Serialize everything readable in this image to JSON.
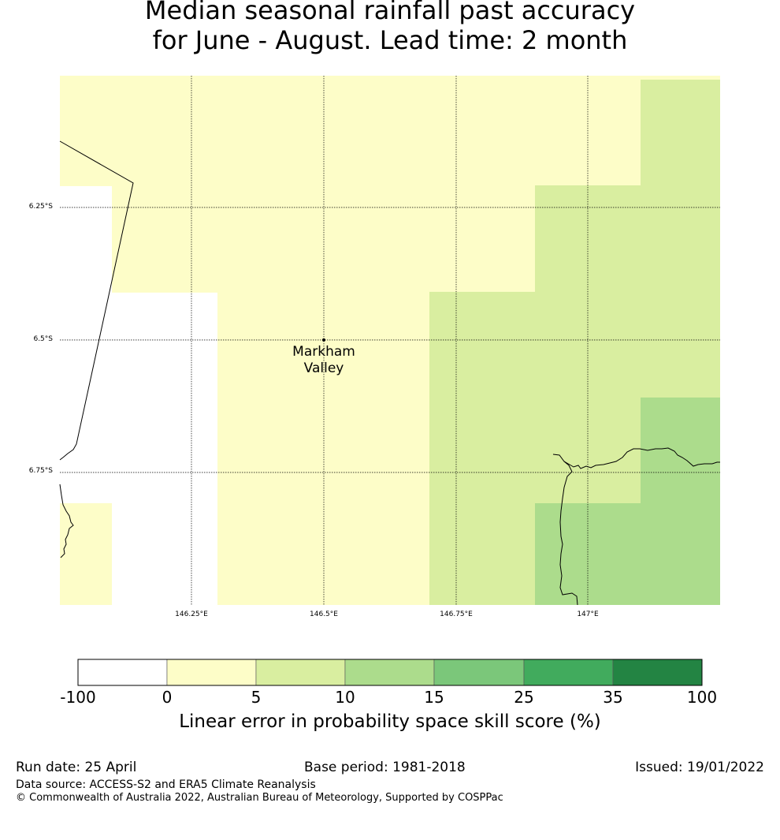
{
  "title": {
    "line1": "Median seasonal rainfall past accuracy",
    "line2": "for June - August. Lead time: 2 month"
  },
  "map": {
    "latitude_labels": [
      "6.25°S",
      "6.5°S",
      "6.75°S"
    ],
    "longitude_labels": [
      "146.25°E",
      "146.5°E",
      "146.75°E",
      "147°E"
    ],
    "place": {
      "line1": "Markham",
      "line2": "Valley"
    },
    "colors": {
      "class_0_5": "#fdfdc8",
      "class_5_10": "#d9eea0",
      "class_10_15": "#acdc8c"
    }
  },
  "colorbar": {
    "ticks": [
      "-100",
      "0",
      "5",
      "10",
      "15",
      "25",
      "35",
      "100"
    ],
    "colors": [
      "#ffffff",
      "#fdfdc8",
      "#d9eea0",
      "#acdc8c",
      "#7bc77a",
      "#41ab5d",
      "#238443"
    ],
    "label": "Linear error in probability space skill score (%)"
  },
  "footer": {
    "run_date": "Run date: 25 April",
    "base_period": "Base period: 1981-2018",
    "issued": "Issued: 19/01/2022",
    "data_source": "Data source: ACCESS-S2 and ERA5 Climate Reanalysis",
    "copyright": "© Commonwealth of Australia 2022, Australian Bureau of Meteorology, Supported by COSPPac"
  }
}
